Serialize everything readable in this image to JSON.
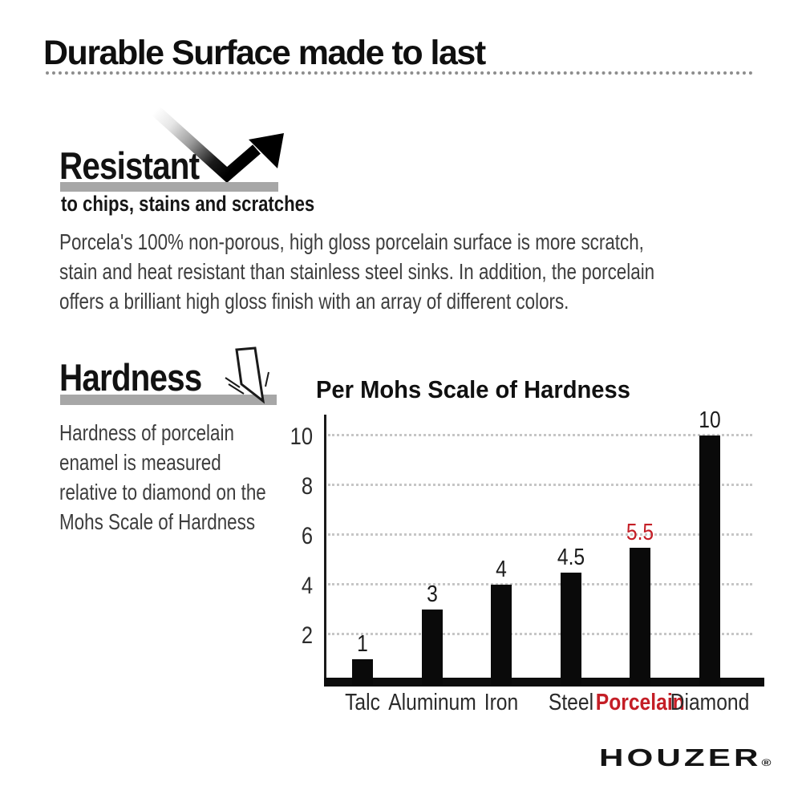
{
  "header": {
    "title": "Durable Surface made to last"
  },
  "resistant": {
    "heading": "Resistant",
    "subheading": "to chips, stains and scratches",
    "body": "Porcela's 100% non-porous, high gloss porcelain surface is more scratch,\nstain and heat resistant than stainless steel sinks. In addition, the porcelain\noffers a brilliant high gloss finish with an array of different colors."
  },
  "hardness": {
    "heading": "Hardness",
    "body": "Hardness of porcelain\nenamel is measured\nrelative to diamond on the\nMohs Scale of Hardness"
  },
  "chart_data": {
    "type": "bar",
    "title": "Per Mohs Scale of Hardness",
    "categories": [
      "Talc",
      "Aluminum",
      "Iron",
      "Steel",
      "Porcelain",
      "Diamond"
    ],
    "values": [
      1,
      3,
      4,
      4.5,
      5.5,
      10
    ],
    "value_labels": [
      "1",
      "3",
      "4",
      "4.5",
      "5.5",
      "10"
    ],
    "yticks": [
      2,
      4,
      6,
      8,
      10
    ],
    "ylim": [
      0,
      10.8
    ],
    "xlabel": "",
    "ylabel": "",
    "grid": "dotted horizontal gridlines at each ytick",
    "legend": "none",
    "bar_color": "#0a0a0a",
    "highlight_category": "Porcelain",
    "highlight_color": "#c41e26"
  },
  "brand": {
    "logo_text": "HOUZER",
    "registered_mark": "®"
  },
  "colors": {
    "accent_red": "#c41e26",
    "gray_bar": "#a7a7a7",
    "dotted_rule": "#8d8d8d",
    "body_text": "#3d3d3d"
  }
}
